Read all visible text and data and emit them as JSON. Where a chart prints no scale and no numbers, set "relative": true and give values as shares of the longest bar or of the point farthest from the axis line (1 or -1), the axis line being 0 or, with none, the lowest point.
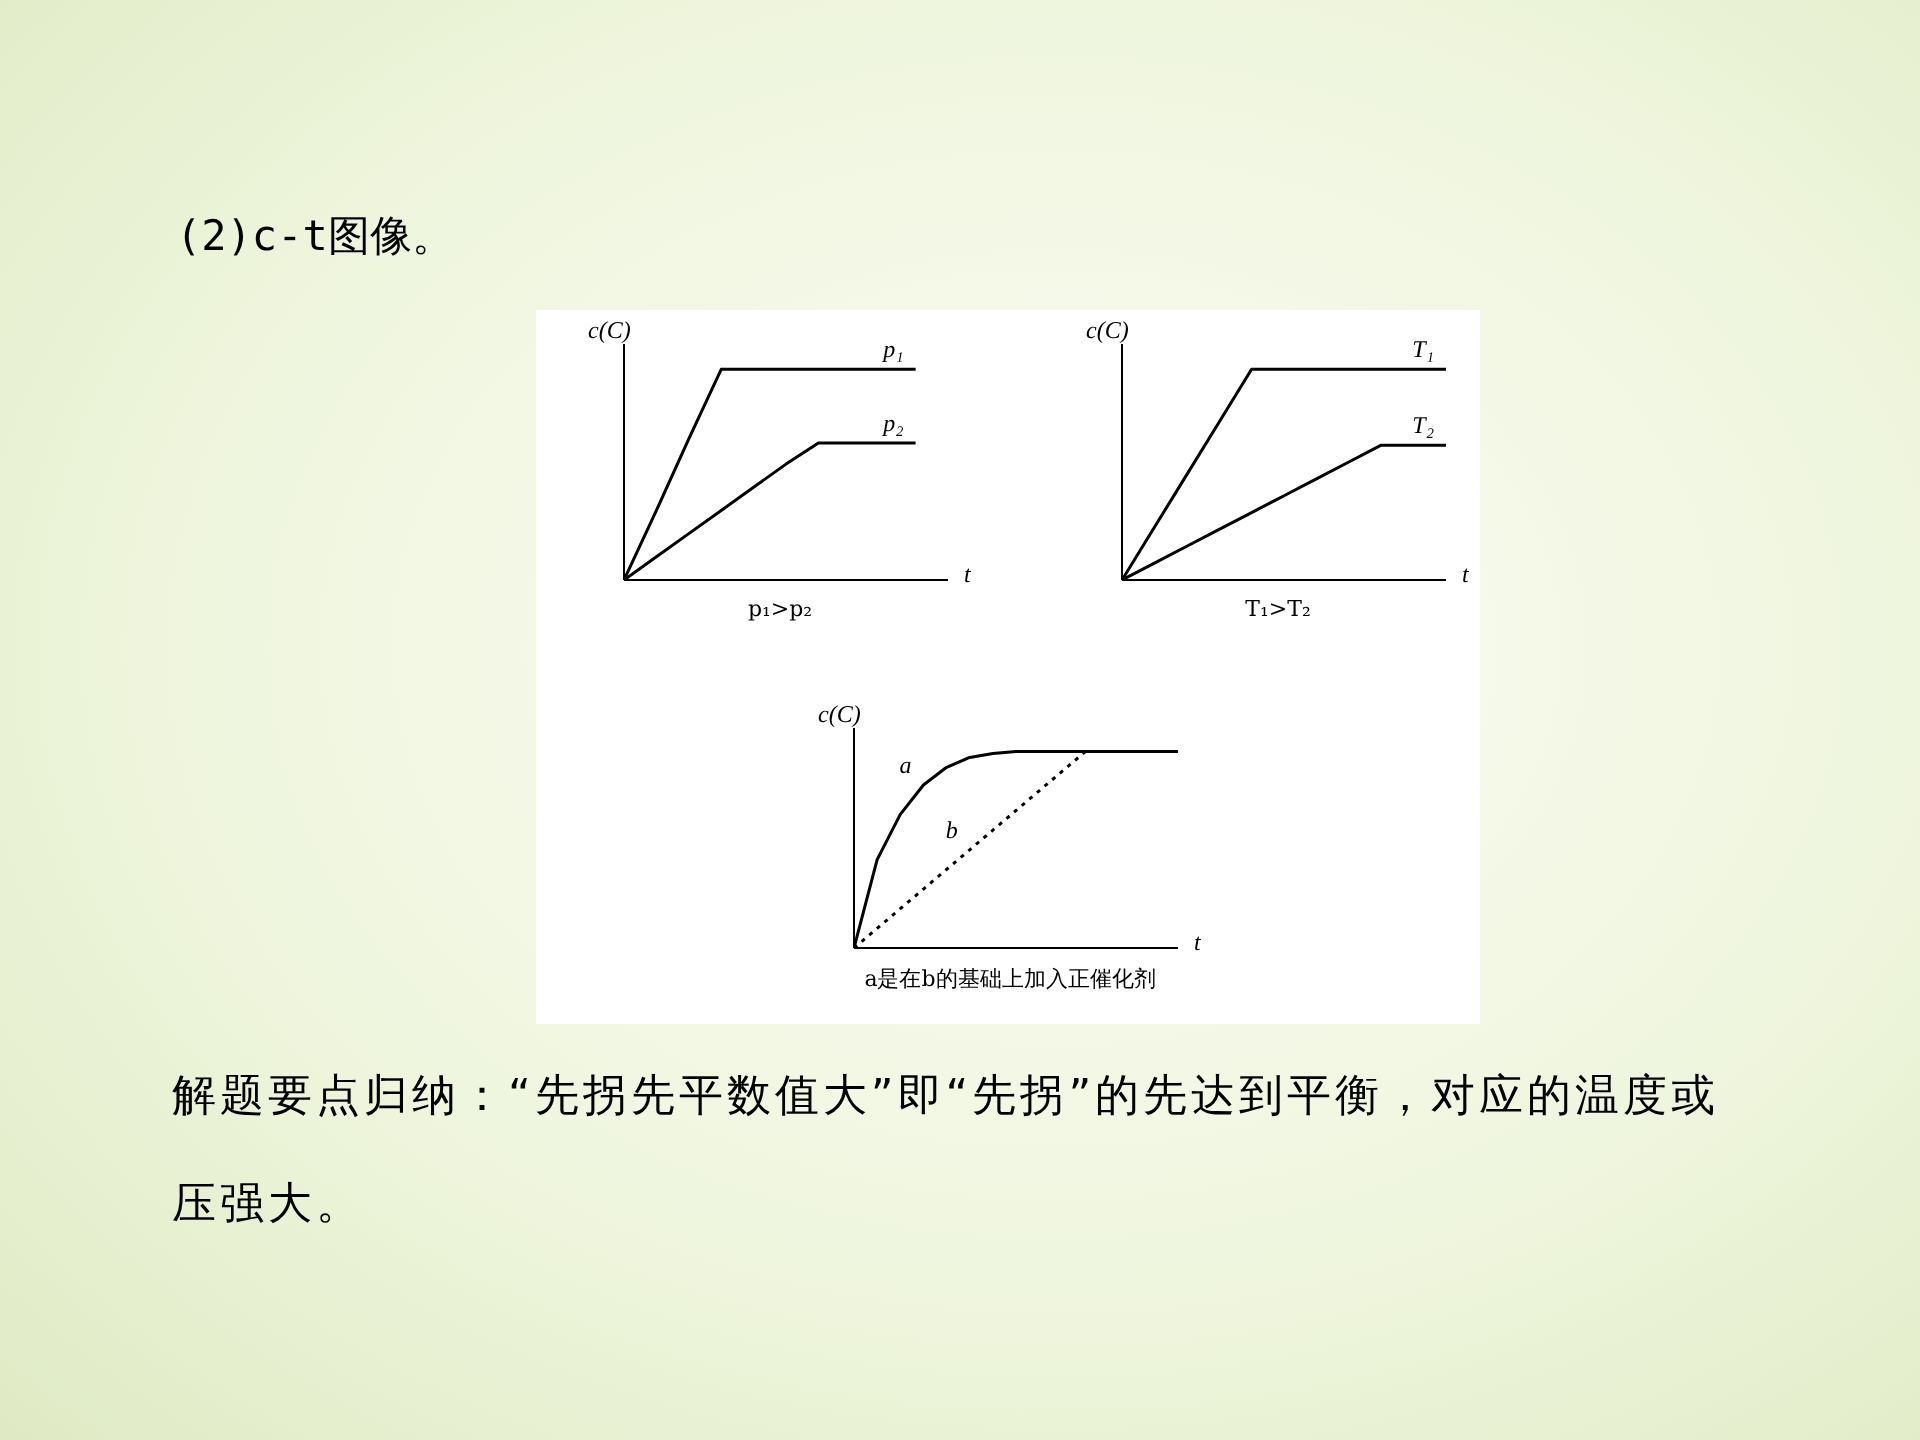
{
  "chart_data": [
    {
      "type": "line",
      "title": "(2)c-t图像。",
      "relative": true,
      "xlabel": "t",
      "ylabel": "c(C)",
      "annotations": [
        "p₁>p₂"
      ],
      "categories": [
        null,
        null,
        null,
        null,
        null,
        null,
        null,
        null,
        null,
        null,
        null
      ],
      "grid": false,
      "legend": false,
      "marker": "none",
      "series": [
        {
          "name": "p₁",
          "color": "#000000",
          "values": [
            0,
            0.33,
            0.67,
            1,
            1,
            1,
            1,
            1,
            1,
            1,
            null
          ]
        },
        {
          "name": "p₂",
          "color": "#000000",
          "values": [
            0,
            0.11,
            0.22,
            0.33,
            0.44,
            0.55,
            0.65,
            0.65,
            0.65,
            0.65,
            null
          ]
        }
      ]
    },
    {
      "type": "line",
      "relative": true,
      "xlabel": "t",
      "ylabel": "c(C)",
      "annotations": [
        "T₁>T₂"
      ],
      "categories": [
        null,
        null,
        null,
        null,
        null,
        null,
        null,
        null,
        null,
        null,
        null
      ],
      "grid": false,
      "legend": false,
      "marker": "none",
      "series": [
        {
          "name": "T₁",
          "color": "#000000",
          "values": [
            0,
            0.25,
            0.5,
            0.75,
            1,
            1,
            1,
            1,
            1,
            1,
            1
          ]
        },
        {
          "name": "T₂",
          "color": "#000000",
          "values": [
            0,
            0.08,
            0.16,
            0.24,
            0.32,
            0.4,
            0.48,
            0.56,
            0.64,
            0.64,
            0.64
          ]
        }
      ]
    },
    {
      "type": "line",
      "relative": true,
      "xlabel": "t",
      "ylabel": "c(C)",
      "annotations": [
        "a是在b的基础上加入正催化剂",
        "解题要点归纳：“先拐先平数值大”即“先拐”的先达到平衡，对应的温度或压强大。"
      ],
      "categories": [
        null,
        null,
        null,
        null,
        null,
        null,
        null,
        null,
        null,
        null,
        null,
        null,
        null,
        null,
        null
      ],
      "grid": false,
      "legend": false,
      "marker": "none",
      "series": [
        {
          "name": "a",
          "color": "#000000",
          "line_style": "solid",
          "values": [
            0,
            0.45,
            0.68,
            0.83,
            0.92,
            0.97,
            0.99,
            1,
            1,
            1,
            1,
            1,
            1,
            1,
            1
          ]
        },
        {
          "name": "b",
          "color": "#000000",
          "line_style": "dotted",
          "values": [
            0,
            0.1,
            0.2,
            0.3,
            0.4,
            0.5,
            0.6,
            0.7,
            0.8,
            0.9,
            1,
            1,
            1,
            1,
            1
          ]
        }
      ]
    }
  ]
}
